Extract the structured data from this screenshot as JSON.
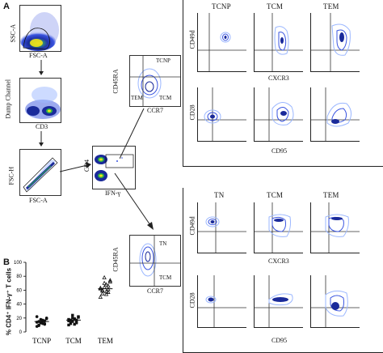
{
  "panel_a": {
    "letter": "A",
    "gating": {
      "plot1": {
        "y": "SSC-A",
        "x": "FSC-A"
      },
      "plot2": {
        "y": "Dump Channel",
        "x": "CD3"
      },
      "plot3": {
        "y": "FSC-H",
        "x": "FSC-A"
      },
      "plot4": {
        "y": "CD4",
        "x": "IFN-γ"
      },
      "plot5": {
        "y": "CD45RA",
        "x": "CCR7",
        "q_tl": "TCNP",
        "q_bl": "TEM",
        "q_br": "TCM"
      },
      "plot6": {
        "y": "CD45RA",
        "x": "CCR7",
        "q_tl": "TN",
        "q_br": "TCM"
      }
    },
    "top_block": {
      "col_titles": [
        "TCNP",
        "TCM",
        "TEM"
      ],
      "row1": {
        "y": "CD49d",
        "x": "CXCR3"
      },
      "row2": {
        "y": "CD28",
        "x": "CD95"
      }
    },
    "bottom_block": {
      "col_titles": [
        "TN",
        "TCM",
        "TEM"
      ],
      "row1": {
        "y": "CD49d",
        "x": "CXCR3"
      },
      "row2": {
        "y": "CD28",
        "x": "CD95"
      }
    }
  },
  "panel_b": {
    "letter": "B",
    "ylabel": "% CD4⁺ IFN-γ⁺ T cells",
    "yticks": [
      "0",
      "20",
      "40",
      "60",
      "80",
      "100"
    ],
    "categories": [
      "TCNP",
      "TCM",
      "TEM"
    ]
  },
  "chart_data": {
    "type": "scatter",
    "ylim": [
      0,
      100
    ],
    "categories": [
      "TCNP",
      "TCM",
      "TEM"
    ],
    "series": [
      {
        "values": [
          14,
          10,
          18,
          12,
          16,
          20,
          8,
          15,
          13,
          17,
          11,
          19,
          22,
          9,
          14,
          16,
          12
        ],
        "mean": 15
      },
      {
        "values": [
          16,
          12,
          20,
          18,
          14,
          22,
          10,
          17,
          15,
          19,
          13,
          21,
          18,
          16,
          24,
          11,
          17
        ],
        "mean": 17
      },
      {
        "values": [
          62,
          55,
          70,
          58,
          66,
          74,
          50,
          60,
          64,
          68,
          57,
          72,
          63,
          59,
          78,
          54,
          61
        ],
        "mean": 62
      }
    ],
    "colors": {
      "TCNP": "#111111",
      "TCM": "#111111",
      "TEM": "#111111"
    },
    "markers": {
      "TCNP": "circle",
      "TCM": "square",
      "TEM": "triangle"
    }
  },
  "colors": {
    "density_low": "#9bb7ff",
    "density_mid": "#3a55e0",
    "density_high": "#1a2a9a",
    "hot": "#f2e21a",
    "gate": "#222222"
  }
}
